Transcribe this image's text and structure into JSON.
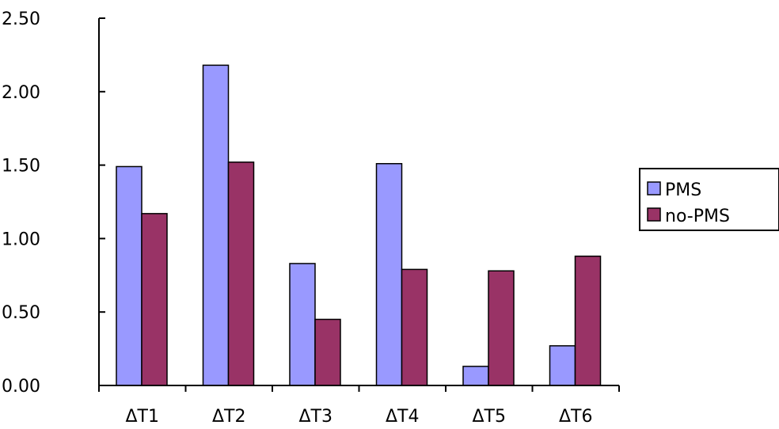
{
  "chart_data": {
    "type": "bar",
    "categories": [
      "ΔT1",
      "ΔT2",
      "ΔT3",
      "ΔT4",
      "ΔT5",
      "ΔT6"
    ],
    "series": [
      {
        "name": "PMS",
        "color": "#9999ff",
        "values": [
          1.49,
          2.18,
          0.83,
          1.51,
          0.13,
          0.27
        ]
      },
      {
        "name": "no-PMS",
        "color": "#993366",
        "values": [
          1.17,
          1.52,
          0.45,
          0.79,
          0.78,
          0.88
        ]
      }
    ],
    "ylim": [
      0,
      2.5
    ],
    "yticks": [
      "0.00",
      "0.50",
      "1.00",
      "1.50",
      "2.00",
      "2.50"
    ],
    "ytick_values": [
      0,
      0.5,
      1.0,
      1.5,
      2.0,
      2.5
    ],
    "grid": false,
    "legend_position": "right"
  }
}
